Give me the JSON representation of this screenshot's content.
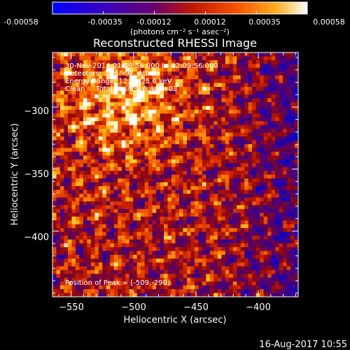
{
  "colorbar": {
    "ticks": [
      "-0.00058",
      "-0.00035",
      "-0.00012",
      "0.00012",
      "0.00035",
      "0.00058"
    ],
    "range": [
      -0.00058,
      0.00058
    ],
    "units": "(photons cm⁻² s⁻¹ asec⁻²)"
  },
  "chart_data": {
    "type": "heatmap",
    "title": "Reconstructed RHESSI Image",
    "xlabel": "Heliocentric X (arcsec)",
    "ylabel": "Heliocentric Y (arcsec)",
    "xlim": [
      -565,
      -368
    ],
    "ylim": [
      -453,
      -256
    ],
    "x_ticks": [
      -550,
      -500,
      -450,
      -400
    ],
    "y_ticks": [
      -300,
      -350,
      -400
    ],
    "x_tick_labels": [
      "−550",
      "−500",
      "−450",
      "−400"
    ],
    "y_tick_labels": [
      "−300",
      "−350",
      "−400"
    ],
    "grid": false,
    "colormap": "heat (blue-purple-red-orange-yellow-white)",
    "annotations": [
      "30-Nov-2014 01:59:56.000 to 02:09:56.000",
      "Detectors: 3F 6F 9F, Att 0",
      "Energy Range: 12.0 - 25.0 keV",
      "Clean     Total counts: 6.44E+03"
    ],
    "peak_label": "Position of Peak = [-509,-290]",
    "peak": {
      "x": -509,
      "y": -290
    }
  },
  "timestamp": "16-Aug-2017 10:55",
  "colors": {
    "background": "#000000",
    "text": "#ffffff",
    "cmap": [
      "#0000ff",
      "#4a00b0",
      "#6a0070",
      "#c01800",
      "#f85000",
      "#ffb020",
      "#ffffff"
    ]
  }
}
